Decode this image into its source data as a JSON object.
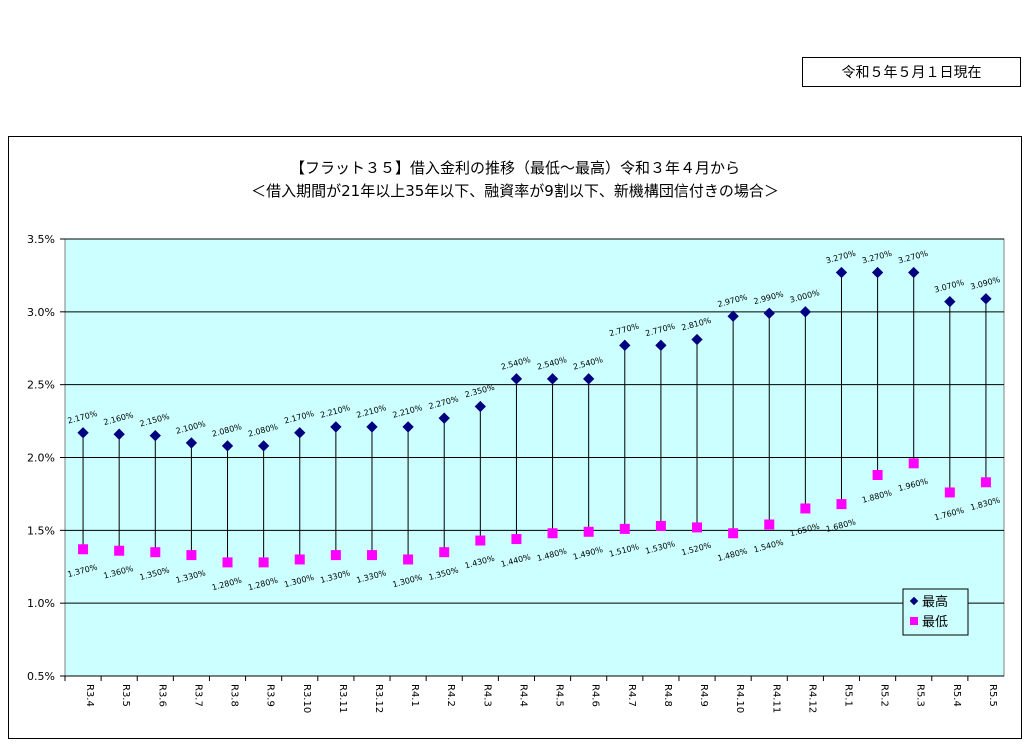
{
  "as_of_date": "令和５年５月１日現在",
  "colors": {
    "plot_background": "#CCFFFF",
    "max_marker": "#000080",
    "min_marker": "#FF00FF",
    "range_line": "#000000"
  },
  "chart_data": {
    "type": "scatter",
    "title": "【フラット３５】借入金利の推移（最低～最高）令和３年４月から",
    "subtitle": "＜借入期間が21年以上35年以下、融資率が9割以下、新機構団信付きの場合＞",
    "categories": [
      "R3.4",
      "R3.5",
      "R3.6",
      "R3.7",
      "R3.8",
      "R3.9",
      "R3.10",
      "R3.11",
      "R3.12",
      "R4.1",
      "R4.2",
      "R4.3",
      "R4.4",
      "R4.5",
      "R4.6",
      "R4.7",
      "R4.8",
      "R4.9",
      "R4.10",
      "R4.11",
      "R4.12",
      "R5.1",
      "R5.2",
      "R5.3",
      "R5.4",
      "R5.5"
    ],
    "series": [
      {
        "name": "最高",
        "marker": "diamond",
        "values": [
          2.17,
          2.16,
          2.15,
          2.1,
          2.08,
          2.08,
          2.17,
          2.21,
          2.21,
          2.21,
          2.27,
          2.35,
          2.54,
          2.54,
          2.54,
          2.77,
          2.77,
          2.81,
          2.97,
          2.99,
          3.0,
          3.27,
          3.27,
          3.27,
          3.07,
          3.09
        ],
        "labels": [
          "2.170%",
          "2.160%",
          "2.150%",
          "2.100%",
          "2.080%",
          "2.080%",
          "2.170%",
          "2.210%",
          "2.210%",
          "2.210%",
          "2.270%",
          "2.350%",
          "2.540%",
          "2.540%",
          "2.540%",
          "2.770%",
          "2.770%",
          "2.810%",
          "2.970%",
          "2.990%",
          "3.000%",
          "3.270%",
          "3.270%",
          "3.270%",
          "3.070%",
          "3.090%"
        ]
      },
      {
        "name": "最低",
        "marker": "square",
        "values": [
          1.37,
          1.36,
          1.35,
          1.33,
          1.28,
          1.28,
          1.3,
          1.33,
          1.33,
          1.3,
          1.35,
          1.43,
          1.44,
          1.48,
          1.49,
          1.51,
          1.53,
          1.52,
          1.48,
          1.54,
          1.65,
          1.68,
          1.88,
          1.96,
          1.76,
          1.83
        ],
        "labels": [
          "1.370%",
          "1.360%",
          "1.350%",
          "1.330%",
          "1.280%",
          "1.280%",
          "1.300%",
          "1.330%",
          "1.330%",
          "1.300%",
          "1.350%",
          "1.430%",
          "1.440%",
          "1.480%",
          "1.490%",
          "1.510%",
          "1.530%",
          "1.520%",
          "1.480%",
          "1.540%",
          "1.650%",
          "1.680%",
          "1.880%",
          "1.960%",
          "1.760%",
          "1.830%"
        ]
      }
    ],
    "y_ticks": [
      "0.5%",
      "1.0%",
      "1.5%",
      "2.0%",
      "2.5%",
      "3.0%",
      "3.5%"
    ],
    "ylim": [
      0.5,
      3.5
    ],
    "grid": "horizontal",
    "legend_position": "bottom-right"
  }
}
